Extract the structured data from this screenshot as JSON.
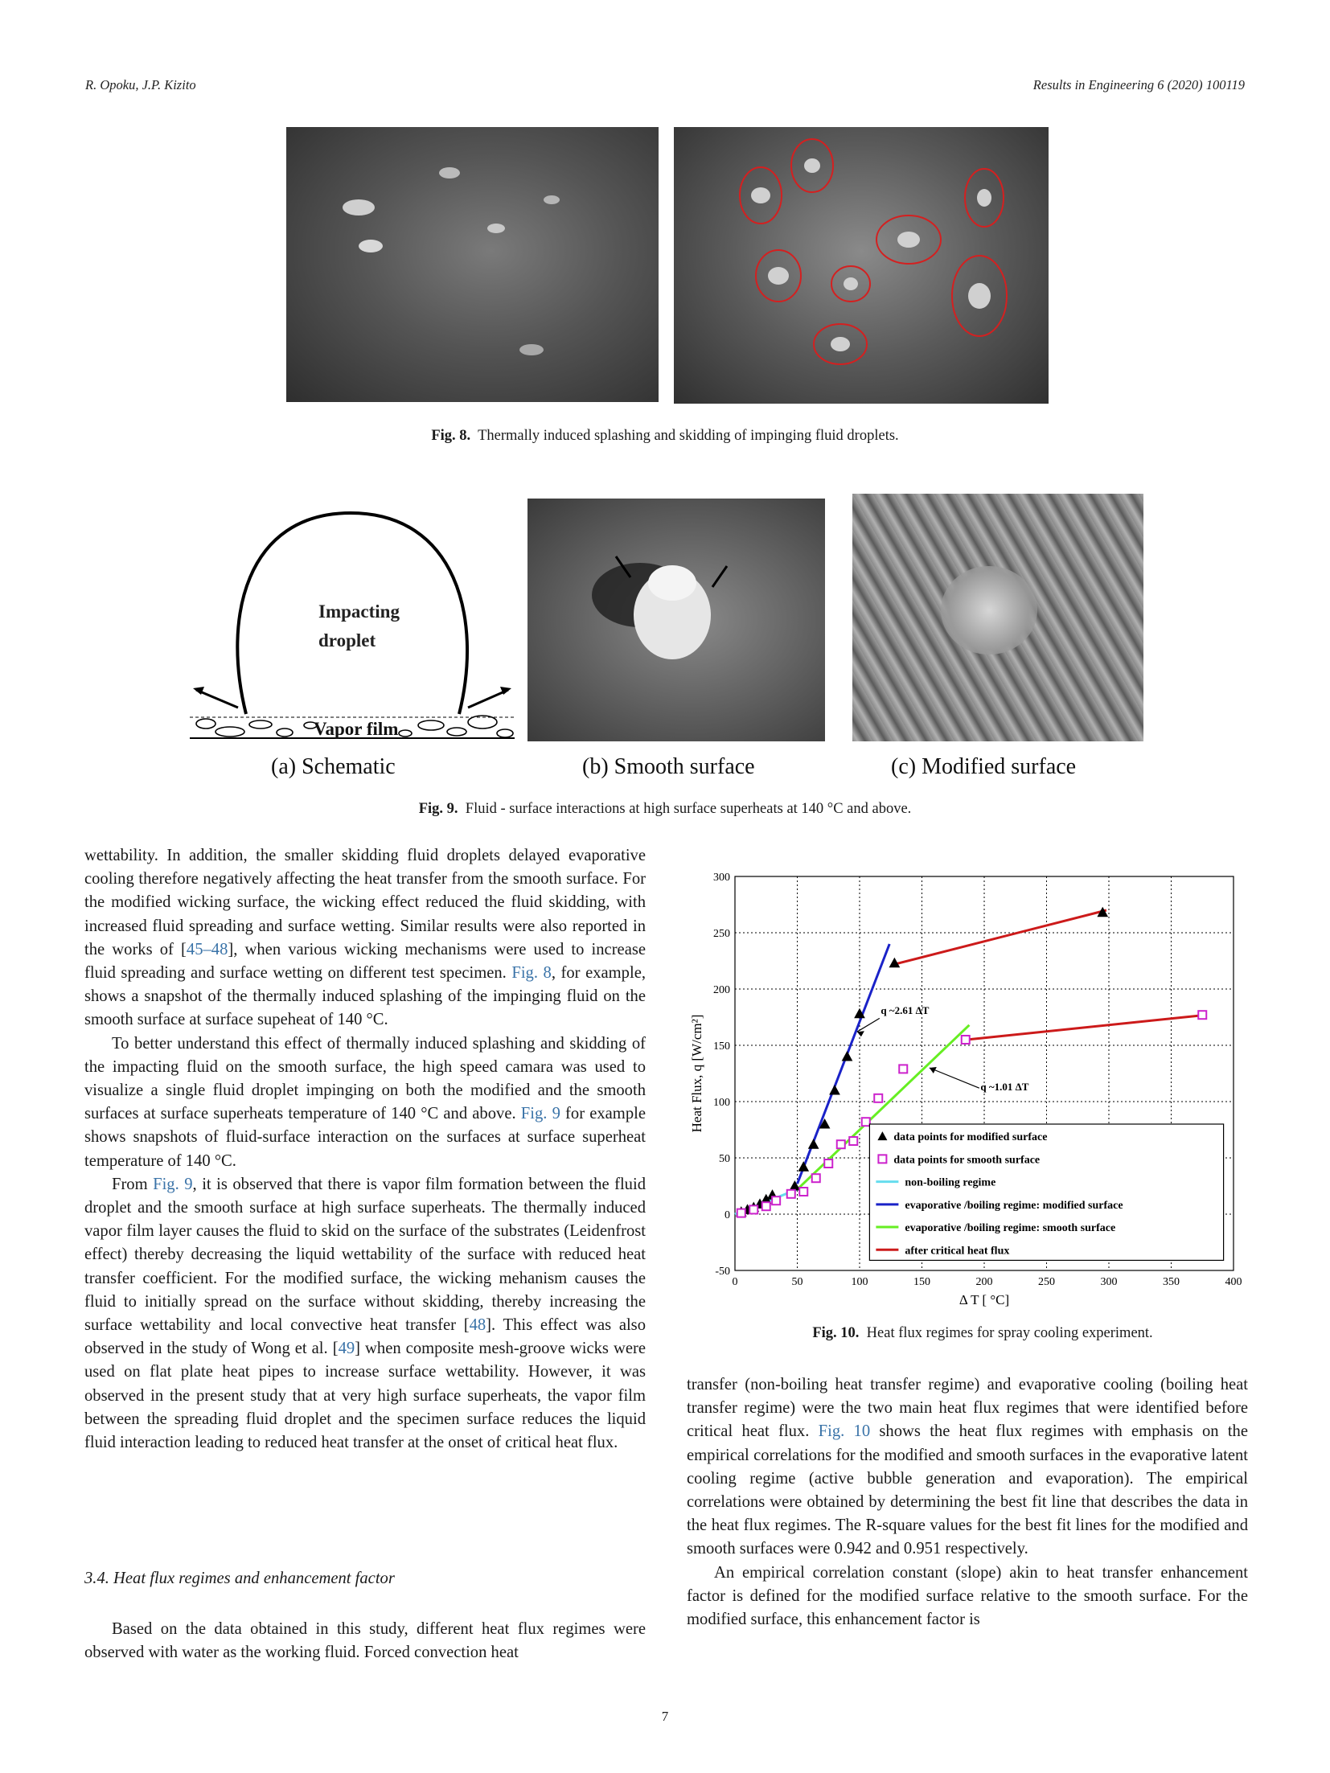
{
  "header": {
    "authors": "R. Opoku, J.P. Kizito",
    "journal": "Results in Engineering 6 (2020) 100119"
  },
  "fig8": {
    "label": "Fig. 8.",
    "caption": "Thermally induced splashing and skidding of impinging fluid droplets."
  },
  "fig9": {
    "label": "Fig. 9.",
    "caption": "Fluid - surface interactions at high surface superheats at 140 °C and above.",
    "schematic_text_1": "Impacting",
    "schematic_text_2": "droplet",
    "schematic_text_3": "Vapor film",
    "sub_a": "(a)  Schematic",
    "sub_b": "(b) Smooth surface",
    "sub_c": "(c) Modified surface"
  },
  "fig10": {
    "label": "Fig. 10.",
    "caption": "Heat flux regimes for spray cooling experiment."
  },
  "left_column": {
    "p1": "wettability. In addition, the smaller skidding fluid droplets delayed evaporative cooling therefore negatively affecting the heat transfer from the smooth surface. For the modified wicking surface, the wicking effect reduced the fluid skidding, with increased fluid spreading and surface wetting. Similar results were also reported in the works of [",
    "p1_ref1": "45–48",
    "p1_b": "], when various wicking mechanisms were used to increase fluid spreading and surface wetting on different test specimen. ",
    "p1_ref2": "Fig. 8",
    "p1_c": ", for example, shows a snapshot of the thermally induced splashing of the impinging fluid on the smooth surface at surface supeheat of 140 °C.",
    "p2": "To better understand this effect of thermally induced splashing and skidding of the impacting fluid on the smooth surface, the high speed camara was used to visualize a single fluid droplet impinging on both the modified and the smooth surfaces at surface superheats temperature of 140 °C and above. ",
    "p2_ref": "Fig. 9",
    "p2_b": " for example shows snapshots of fluid-surface interaction on the surfaces at surface superheat temperature of 140 °C.",
    "p3_a": "From ",
    "p3_ref1": "Fig. 9",
    "p3_b": ", it is observed that there is vapor film formation between the fluid droplet and the smooth surface at high surface superheats. The thermally induced vapor film layer causes the fluid to skid on the surface of the substrates (Leidenfrost effect) thereby decreasing the liquid wettability of the surface with reduced heat transfer coefficient. For the modified surface, the wicking mehanism causes the fluid to initially spread on the surface without skidding, thereby increasing the surface wettability and local convective heat transfer [",
    "p3_ref2": "48",
    "p3_c": "]. This effect was also observed in the study of Wong et al. [",
    "p3_ref3": "49",
    "p3_d": "] when composite mesh-groove wicks were used on flat plate heat pipes to increase surface wettability. However, it was observed in the present study that at very high surface superheats, the vapor film between the spreading fluid droplet and the specimen surface reduces the liquid fluid interaction leading to reduced heat transfer at the onset of critical heat flux.",
    "section": "3.4.  Heat flux regimes and enhancement factor",
    "p4": "Based on the data obtained in this study, different heat flux regimes were observed with water as the working fluid. Forced convection heat"
  },
  "right_column": {
    "p1_a": "transfer (non-boiling heat transfer regime) and evaporative cooling (boiling heat transfer regime) were the two main heat flux regimes that were identified before critical heat flux. ",
    "p1_ref": "Fig. 10",
    "p1_b": " shows the heat flux regimes with emphasis on the empirical correlations for the modified and smooth surfaces in the evaporative latent cooling regime (active bubble generation and evaporation). The empirical correlations were obtained by determining the best fit line that describes the data in the heat flux regimes. The R-square values for the best fit lines for the modified and smooth surfaces were 0.942 and 0.951 respectively.",
    "p2": "An empirical correlation constant (slope) akin to heat transfer enhancement factor is defined for the modified surface relative to the smooth surface. For the modified surface, this enhancement factor is"
  },
  "page_number": "7",
  "chart_data": {
    "type": "scatter",
    "xlabel": "Δ T [ °C]",
    "ylabel": "Heat Flux, q [W/cm²]",
    "xlim": [
      0,
      400
    ],
    "ylim": [
      -50,
      300
    ],
    "x_ticks": [
      0,
      50,
      100,
      150,
      200,
      250,
      300,
      350,
      400
    ],
    "y_ticks": [
      -50,
      0,
      50,
      100,
      150,
      200,
      250,
      300
    ],
    "grid": true,
    "legend_position": "bottom-right",
    "annotations": [
      "q ~2.61 ΔT",
      "q ~1.01 ΔT"
    ],
    "series": [
      {
        "name": "data points for modified surface",
        "kind": "points",
        "marker": "triangle",
        "color": "#000000",
        "x": [
          5,
          10,
          15,
          20,
          25,
          30,
          48,
          55,
          63,
          72,
          80,
          90,
          100,
          128,
          295
        ],
        "y": [
          2,
          4,
          6,
          9,
          13,
          17,
          25,
          42,
          62,
          80,
          110,
          140,
          178,
          223,
          268
        ]
      },
      {
        "name": "data points for smooth surface",
        "kind": "points",
        "marker": "square",
        "color": "#cc22cc",
        "x": [
          5,
          15,
          25,
          33,
          45,
          55,
          65,
          75,
          85,
          95,
          105,
          115,
          135,
          185,
          375
        ],
        "y": [
          1,
          4,
          7,
          12,
          18,
          20,
          32,
          45,
          62,
          65,
          82,
          103,
          129,
          155,
          177
        ]
      },
      {
        "name": "non-boiling regime",
        "kind": "line",
        "color": "#66ddee",
        "x": [
          0,
          50
        ],
        "y": [
          0,
          22
        ]
      },
      {
        "name": "evaporative /boiling regime: modified surface",
        "kind": "line",
        "color": "#1a22c8",
        "x": [
          50,
          124
        ],
        "y": [
          27,
          240
        ]
      },
      {
        "name": "evaporative /boiling regime: smooth surface",
        "kind": "line",
        "color": "#66ee22",
        "x": [
          50,
          188
        ],
        "y": [
          22,
          168
        ]
      },
      {
        "name": "after critical heat flux",
        "kind": "line",
        "color": "#cc1a1a",
        "x": [
          128,
          298
        ],
        "y": [
          222,
          270
        ]
      },
      {
        "name": "",
        "kind": "line",
        "color": "#cc1a1a",
        "x": [
          186,
          378
        ],
        "y": [
          155,
          177
        ]
      }
    ]
  }
}
